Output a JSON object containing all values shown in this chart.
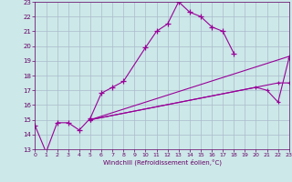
{
  "xlabel": "Windchill (Refroidissement éolien,°C)",
  "background_color": "#cce8e8",
  "grid_color": "#aabbcc",
  "line_color": "#990099",
  "xmin": 0,
  "xmax": 23,
  "ymin": 13,
  "ymax": 23,
  "curve1_x": [
    0,
    1,
    2,
    3,
    4,
    5,
    6,
    7,
    8,
    10,
    11,
    12,
    13,
    14,
    15,
    16,
    17,
    18
  ],
  "curve1_y": [
    14.6,
    12.8,
    14.8,
    14.8,
    14.3,
    15.1,
    16.8,
    17.2,
    17.6,
    19.9,
    21.0,
    21.5,
    23.0,
    22.3,
    22.0,
    21.3,
    21.0,
    19.5
  ],
  "line2_x": [
    5,
    23
  ],
  "line2_y": [
    15.0,
    19.3
  ],
  "line3_x": [
    5,
    20,
    21,
    22,
    23
  ],
  "line3_y": [
    15.0,
    17.2,
    17.0,
    16.2,
    19.2
  ],
  "line4_x": [
    5,
    22,
    23
  ],
  "line4_y": [
    15.0,
    17.5,
    17.5
  ]
}
